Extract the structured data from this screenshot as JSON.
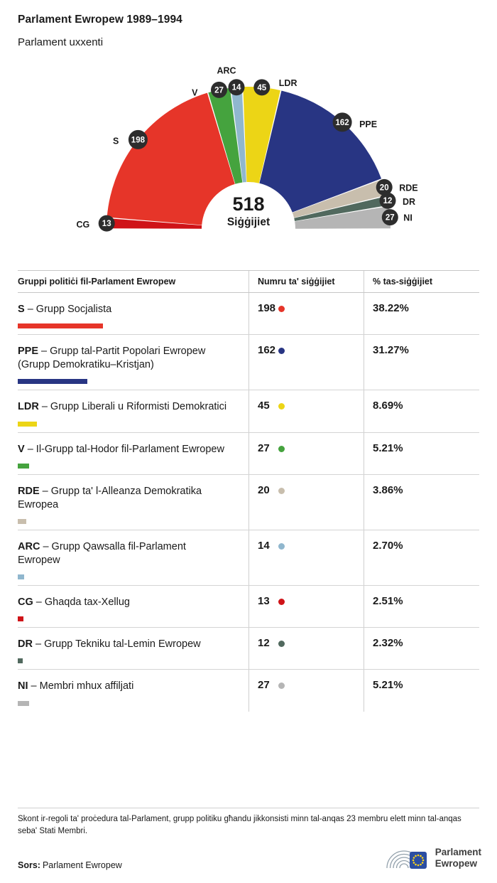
{
  "header": {
    "title": "Parlament Ewropew 1989–1994",
    "subtitle": "Parlament uxxenti"
  },
  "hemicycle": {
    "total": "518",
    "total_label": "Siġġijiet"
  },
  "chart_data": {
    "type": "pie",
    "variant": "hemicycle-half-donut",
    "title": "Parlament Ewropew 1989–1994 — Parlament uxxenti",
    "total_seats": 518,
    "center_label": "Siġġijiet",
    "order_left_to_right": [
      "CG",
      "S",
      "V",
      "ARC",
      "LDR",
      "PPE",
      "RDE",
      "DR",
      "NI"
    ],
    "groups": [
      {
        "code": "CG",
        "seats": 13,
        "pct": 2.51,
        "color": "#cf1318"
      },
      {
        "code": "S",
        "seats": 198,
        "pct": 38.22,
        "color": "#e63529"
      },
      {
        "code": "V",
        "seats": 27,
        "pct": 5.21,
        "color": "#45a33e"
      },
      {
        "code": "ARC",
        "seats": 14,
        "pct": 2.7,
        "color": "#90b7ce"
      },
      {
        "code": "LDR",
        "seats": 45,
        "pct": 8.69,
        "color": "#ecd516"
      },
      {
        "code": "PPE",
        "seats": 162,
        "pct": 31.27,
        "color": "#283583"
      },
      {
        "code": "RDE",
        "seats": 20,
        "pct": 3.86,
        "color": "#c8bead"
      },
      {
        "code": "DR",
        "seats": 12,
        "pct": 2.32,
        "color": "#51695e"
      },
      {
        "code": "NI",
        "seats": 27,
        "pct": 5.21,
        "color": "#b5b5b5"
      }
    ]
  },
  "table": {
    "headers": [
      "Gruppi politiċi fil-Parlament Ewropew",
      "Numru ta' siġġijiet",
      "% tas-siġġijiet"
    ],
    "rows": [
      {
        "code": "S",
        "rest": "– Grupp Socjalista",
        "seats": "198",
        "pct": "38.22%",
        "pct_value": 38.22,
        "color": "#e63529"
      },
      {
        "code": "PPE",
        "rest": "– Grupp tal-Partit Popolari Ewropew (Grupp Demokratiku–Kristjan)",
        "seats": "162",
        "pct": "31.27%",
        "pct_value": 31.27,
        "color": "#283583"
      },
      {
        "code": "LDR",
        "rest": "– Grupp Liberali u Riformisti Demokratici",
        "seats": "45",
        "pct": "8.69%",
        "pct_value": 8.69,
        "color": "#ecd516"
      },
      {
        "code": "V",
        "rest": "– Il-Grupp tal-Hodor fil-Parlament Ewropew",
        "seats": "27",
        "pct": "5.21%",
        "pct_value": 5.21,
        "color": "#45a33e"
      },
      {
        "code": "RDE",
        "rest": "– Grupp ta' l-Alleanza Demokratika Ewropea",
        "seats": "20",
        "pct": "3.86%",
        "pct_value": 3.86,
        "color": "#c8bead"
      },
      {
        "code": "ARC",
        "rest": "– Grupp Qawsalla fil-Parlament Ewropew",
        "seats": "14",
        "pct": "2.70%",
        "pct_value": 2.7,
        "color": "#90b7ce"
      },
      {
        "code": "CG",
        "rest": "– Ghaqda tax-Xellug",
        "seats": "13",
        "pct": "2.51%",
        "pct_value": 2.51,
        "color": "#cf1318"
      },
      {
        "code": "DR",
        "rest": "– Grupp Tekniku tal-Lemin Ewropew",
        "seats": "12",
        "pct": "2.32%",
        "pct_value": 2.32,
        "color": "#51695e"
      },
      {
        "code": "NI",
        "rest": "– Membri mhux affiljati",
        "seats": "27",
        "pct": "5.21%",
        "pct_value": 5.21,
        "color": "#b5b5b5"
      }
    ]
  },
  "footer": {
    "note": "Skont ir-regoli ta' proċedura tal-Parlament, grupp politiku għandu jikkonsisti minn tal-anqas 23 membru elett minn tal-anqas seba' Stati Membri.",
    "source_label": "Sors:",
    "source": "Parlament Ewropew",
    "logo_line1": "Parlament",
    "logo_line2": "Ewropew"
  }
}
